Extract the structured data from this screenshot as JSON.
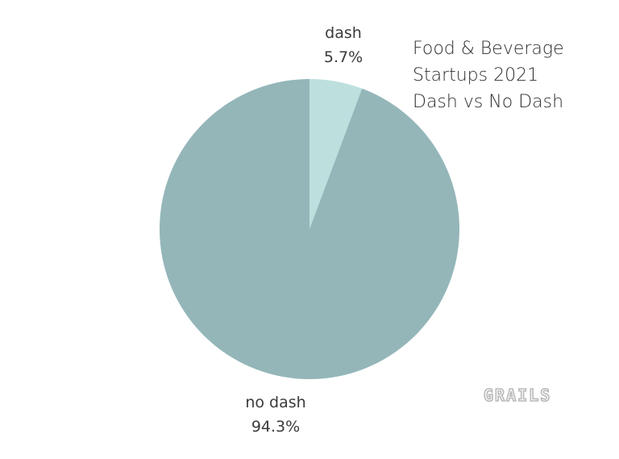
{
  "chart_data": {
    "type": "pie",
    "title_lines": [
      "Food & Beverage",
      "Startups 2021",
      "Dash vs No Dash"
    ],
    "slices": [
      {
        "name": "dash",
        "value": 5.7,
        "label": "5.7%",
        "color": "#bde0de"
      },
      {
        "name": "no dash",
        "value": 94.3,
        "label": "94.3%",
        "color": "#94b6b9"
      }
    ],
    "start_angle": "12 o'clock",
    "direction": "clockwise"
  },
  "watermark": "GRAILS"
}
